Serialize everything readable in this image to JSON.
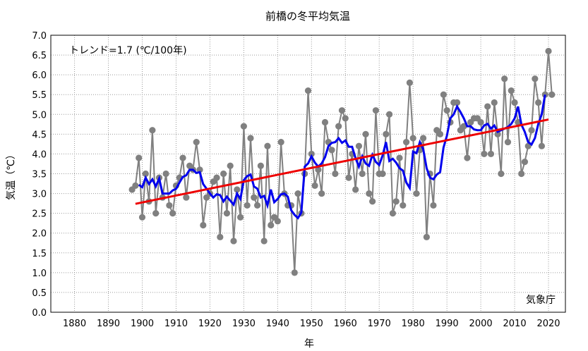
{
  "chart_data": {
    "type": "line",
    "title": "前橋の冬平均気温",
    "xlabel": "年",
    "ylabel": "気温（℃）",
    "xlim": [
      1873,
      2025
    ],
    "ylim": [
      0.0,
      7.0
    ],
    "x_ticks": [
      "1880",
      "1890",
      "1900",
      "1910",
      "1920",
      "1930",
      "1940",
      "1950",
      "1960",
      "1970",
      "1980",
      "1990",
      "2000",
      "2010",
      "2020"
    ],
    "y_ticks": [
      "0.0",
      "0.5",
      "1.0",
      "1.5",
      "2.0",
      "2.5",
      "3.0",
      "3.5",
      "4.0",
      "4.5",
      "5.0",
      "5.5",
      "6.0",
      "6.5",
      "7.0"
    ],
    "grid": true,
    "trend_annotation": "トレンド=1.7 (℃/100年)",
    "source_label": "気象庁",
    "colors": {
      "annual": "#808080",
      "moving_average": "#0000ee",
      "trend": "#ee0000"
    },
    "series": [
      {
        "role": "annual",
        "x": [
          1897,
          1898,
          1899,
          1900,
          1901,
          1902,
          1903,
          1904,
          1905,
          1906,
          1907,
          1908,
          1909,
          1910,
          1911,
          1912,
          1913,
          1914,
          1915,
          1916,
          1917,
          1918,
          1919,
          1920,
          1921,
          1922,
          1923,
          1924,
          1925,
          1926,
          1927,
          1928,
          1929,
          1930,
          1931,
          1932,
          1933,
          1934,
          1935,
          1936,
          1937,
          1938,
          1939,
          1940,
          1941,
          1942,
          1943,
          1944,
          1945,
          1946,
          1947,
          1948,
          1949,
          1950,
          1951,
          1952,
          1953,
          1954,
          1955,
          1956,
          1957,
          1958,
          1959,
          1960,
          1961,
          1962,
          1963,
          1964,
          1965,
          1966,
          1967,
          1968,
          1969,
          1970,
          1971,
          1972,
          1973,
          1974,
          1975,
          1976,
          1977,
          1978,
          1979,
          1980,
          1981,
          1982,
          1983,
          1984,
          1985,
          1986,
          1987,
          1988,
          1989,
          1990,
          1991,
          1992,
          1993,
          1994,
          1995,
          1996,
          1997,
          1998,
          1999,
          2000,
          2001,
          2002,
          2003,
          2004,
          2005,
          2006,
          2007,
          2008,
          2009,
          2010,
          2011,
          2012,
          2013,
          2014,
          2015,
          2016,
          2017,
          2018,
          2019,
          2020,
          2021
        ],
        "y": [
          3.1,
          3.2,
          3.9,
          2.4,
          3.5,
          2.8,
          4.6,
          2.5,
          3.4,
          2.9,
          3.5,
          2.7,
          2.5,
          3.2,
          3.4,
          3.9,
          2.9,
          3.7,
          3.6,
          4.3,
          3.6,
          2.2,
          2.9,
          3.0,
          3.3,
          3.4,
          1.9,
          3.5,
          2.5,
          3.7,
          1.8,
          3.1,
          2.4,
          4.7,
          2.7,
          4.4,
          2.9,
          2.7,
          3.7,
          1.8,
          4.2,
          2.2,
          2.4,
          2.3,
          4.3,
          3.0,
          2.7,
          2.7,
          1.0,
          3.0,
          2.5,
          3.5,
          5.6,
          4.0,
          3.2,
          3.6,
          3.0,
          4.8,
          4.3,
          4.1,
          3.5,
          4.7,
          5.1,
          4.9,
          3.4,
          4.0,
          3.1,
          4.2,
          3.5,
          4.5,
          3.0,
          2.8,
          5.1,
          3.5,
          3.5,
          4.5,
          5.0,
          2.5,
          2.8,
          3.9,
          2.7,
          4.3,
          5.8,
          4.4,
          3.0,
          4.1,
          4.4,
          1.9,
          3.5,
          2.7,
          4.6,
          4.5,
          5.5,
          5.1,
          4.8,
          5.3,
          5.3,
          4.6,
          4.7,
          3.9,
          4.8,
          4.9,
          4.9,
          4.8,
          4.0,
          5.2,
          4.0,
          5.3,
          4.5,
          3.5,
          5.9,
          4.3,
          5.6,
          5.3,
          4.8,
          3.5,
          3.8,
          4.2,
          4.6,
          5.9,
          5.3,
          4.2,
          5.5,
          6.6,
          5.5
        ]
      },
      {
        "role": "moving_average",
        "x": [
          1899,
          1900,
          1901,
          1902,
          1903,
          1904,
          1905,
          1906,
          1907,
          1908,
          1909,
          1910,
          1911,
          1912,
          1913,
          1914,
          1915,
          1916,
          1917,
          1918,
          1919,
          1920,
          1921,
          1922,
          1923,
          1924,
          1925,
          1926,
          1927,
          1928,
          1929,
          1930,
          1931,
          1932,
          1933,
          1934,
          1935,
          1936,
          1937,
          1938,
          1939,
          1940,
          1941,
          1942,
          1943,
          1944,
          1945,
          1946,
          1947,
          1948,
          1949,
          1950,
          1951,
          1952,
          1953,
          1954,
          1955,
          1956,
          1957,
          1958,
          1959,
          1960,
          1961,
          1962,
          1963,
          1964,
          1965,
          1966,
          1967,
          1968,
          1969,
          1970,
          1971,
          1972,
          1973,
          1974,
          1975,
          1976,
          1977,
          1978,
          1979,
          1980,
          1981,
          1982,
          1983,
          1984,
          1985,
          1986,
          1987,
          1988,
          1989,
          1990,
          1991,
          1992,
          1993,
          1994,
          1995,
          1996,
          1997,
          1998,
          1999,
          2000,
          2001,
          2002,
          2003,
          2004,
          2005,
          2006,
          2007,
          2008,
          2009,
          2010,
          2011,
          2012,
          2013,
          2014,
          2015,
          2016,
          2017,
          2018,
          2019
        ],
        "y": [
          3.22,
          3.16,
          3.4,
          3.24,
          3.36,
          3.18,
          3.38,
          3.0,
          3.0,
          3.0,
          3.08,
          3.12,
          3.28,
          3.42,
          3.46,
          3.6,
          3.6,
          3.52,
          3.54,
          3.24,
          3.12,
          3.0,
          2.9,
          2.98,
          2.96,
          2.8,
          2.92,
          2.82,
          2.72,
          3.0,
          2.86,
          3.34,
          3.44,
          3.48,
          3.18,
          3.12,
          2.9,
          2.94,
          2.7,
          3.1,
          2.78,
          2.86,
          2.98,
          3.0,
          2.92,
          2.58,
          2.46,
          2.38,
          2.52,
          3.68,
          3.76,
          3.94,
          3.78,
          3.68,
          3.76,
          3.92,
          4.2,
          4.28,
          4.3,
          4.4,
          4.28,
          4.34,
          4.18,
          4.18,
          3.9,
          3.68,
          3.94,
          3.76,
          3.7,
          3.98,
          3.8,
          3.72,
          3.96,
          4.3,
          3.82,
          3.88,
          3.78,
          3.64,
          3.58,
          3.28,
          3.14,
          4.06,
          4.02,
          4.3,
          4.12,
          3.64,
          3.4,
          3.36,
          3.48,
          3.54,
          4.16,
          4.46,
          4.9,
          5.0,
          5.2,
          5.06,
          4.9,
          4.7,
          4.7,
          4.62,
          4.6,
          4.6,
          4.72,
          4.76,
          4.64,
          4.72,
          4.56,
          4.6,
          4.64,
          4.68,
          4.76,
          4.9,
          5.2,
          4.74,
          4.56,
          4.3,
          4.24,
          4.4,
          4.76,
          5.0,
          5.5
        ],
        "label_end_x": 2019
      },
      {
        "role": "trend",
        "x": [
          1898,
          2020
        ],
        "y": [
          2.74,
          4.87
        ]
      }
    ]
  }
}
